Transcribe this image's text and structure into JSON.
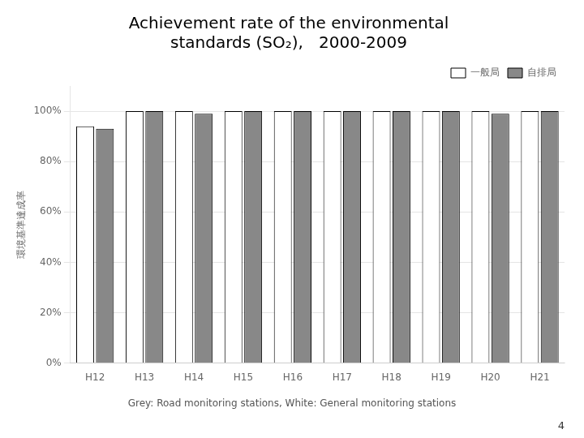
{
  "chart_data": {
    "type": "bar",
    "title": [
      "Achievement rate of the environmental",
      "standards (SO₂),   2000-2009"
    ],
    "categories": [
      "H12",
      "H13",
      "H14",
      "H15",
      "H16",
      "H17",
      "H18",
      "H19",
      "H20",
      "H21"
    ],
    "series": [
      {
        "name": "一般局",
        "color": "#ffffff",
        "values": [
          94,
          100,
          100,
          100,
          100,
          100,
          100,
          100,
          100,
          100
        ]
      },
      {
        "name": "自排局",
        "color": "#888888",
        "values": [
          93,
          100,
          99,
          100,
          100,
          100,
          100,
          100,
          99,
          100
        ]
      }
    ],
    "ylabel": "環境基準達成率",
    "ylim": [
      0,
      110
    ],
    "yticks": [
      {
        "value": 0,
        "label": "0%"
      },
      {
        "value": 20,
        "label": "20%"
      },
      {
        "value": 40,
        "label": "40%"
      },
      {
        "value": 60,
        "label": "60%"
      },
      {
        "value": 80,
        "label": "80%"
      },
      {
        "value": 100,
        "label": "100%"
      }
    ],
    "grid": true,
    "legend": "upper right",
    "annotations": [
      "Grey: Road monitoring stations, White: General monitoring stations",
      "4"
    ]
  }
}
